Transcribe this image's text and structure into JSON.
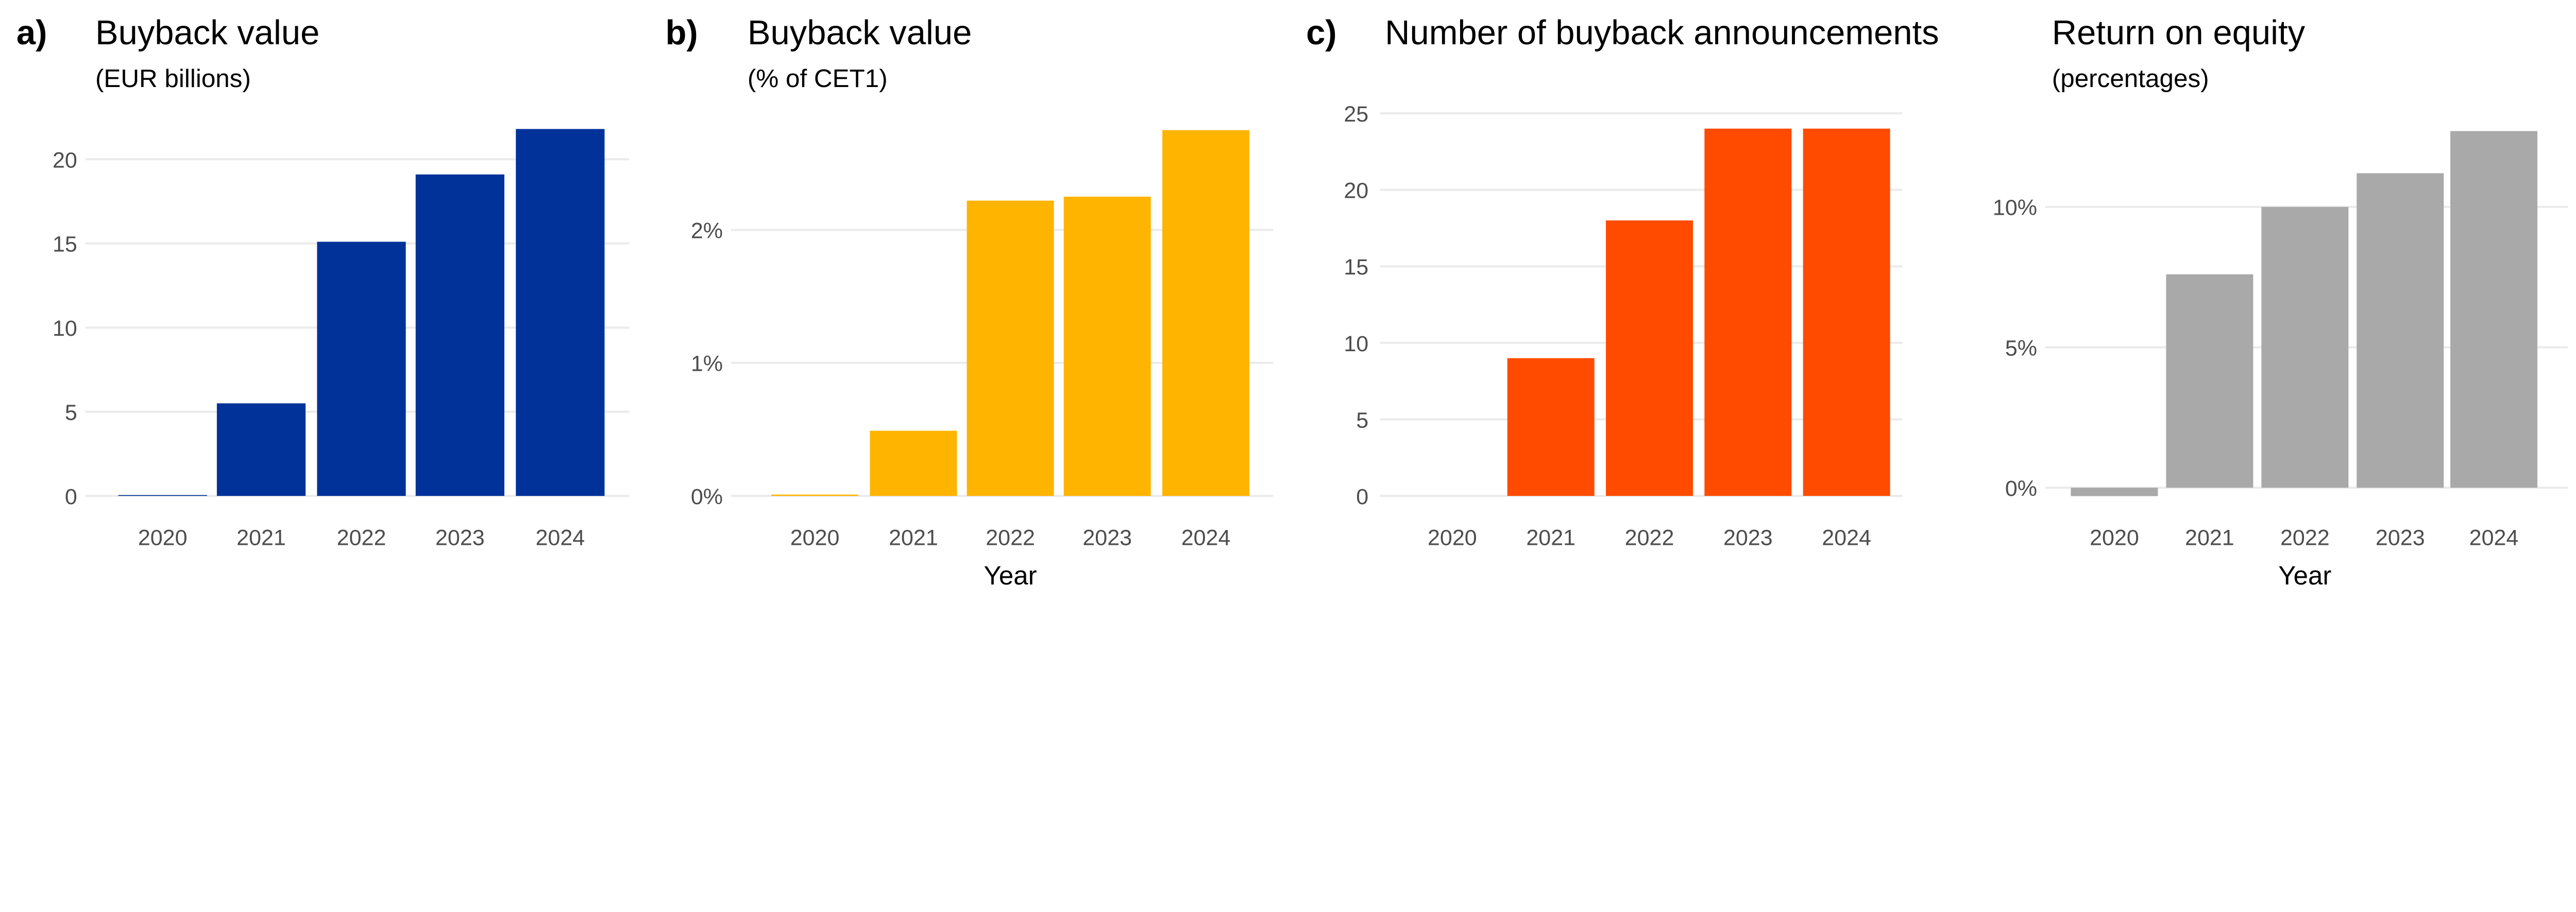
{
  "chart_data": [
    {
      "type": "bar",
      "panel_label": "a)",
      "title": "Buyback value",
      "subtitle": "(EUR billions)",
      "xlabel": "",
      "categories": [
        "2020",
        "2021",
        "2022",
        "2023",
        "2024"
      ],
      "values": [
        0.05,
        5.5,
        15.1,
        19.1,
        21.8
      ],
      "ylim": [
        0,
        22
      ],
      "yticks": [
        0,
        5,
        10,
        15,
        20
      ],
      "ytick_labels": [
        "0",
        "5",
        "10",
        "15",
        "20"
      ],
      "color": "#003299",
      "grid": true
    },
    {
      "type": "bar",
      "panel_label": "b)",
      "title": "Buyback value",
      "subtitle": "(% of CET1)",
      "xlabel": "Year",
      "categories": [
        "2020",
        "2021",
        "2022",
        "2023",
        "2024"
      ],
      "values": [
        0.01,
        0.49,
        2.22,
        2.25,
        2.75
      ],
      "ylim": [
        0,
        2.75
      ],
      "yticks": [
        0,
        1,
        2
      ],
      "ytick_labels": [
        "0%",
        "1%",
        "2%"
      ],
      "color": "#FFB400",
      "grid": true
    },
    {
      "type": "bar",
      "panel_label": "c)",
      "title": "Number of buyback announcements",
      "subtitle": "",
      "xlabel": "",
      "categories": [
        "2020",
        "2021",
        "2022",
        "2023",
        "2024"
      ],
      "values": [
        0,
        9,
        18,
        24,
        24
      ],
      "ylim": [
        0,
        25
      ],
      "yticks": [
        0,
        5,
        10,
        15,
        20,
        25
      ],
      "ytick_labels": [
        "0",
        "5",
        "10",
        "15",
        "20",
        "25"
      ],
      "color": "#FF4B00",
      "grid": true
    },
    {
      "type": "bar",
      "panel_label": "",
      "title": "Return on equity",
      "subtitle": "(percentages)",
      "xlabel": "Year",
      "categories": [
        "2020",
        "2021",
        "2022",
        "2023",
        "2024"
      ],
      "values": [
        -0.3,
        7.6,
        10.0,
        11.2,
        12.7
      ],
      "ylim": [
        -0.3,
        12.7
      ],
      "yticks": [
        0,
        5,
        10
      ],
      "ytick_labels": [
        "0%",
        "5%",
        "10%"
      ],
      "color": "#A9A9A9",
      "grid": true
    }
  ]
}
